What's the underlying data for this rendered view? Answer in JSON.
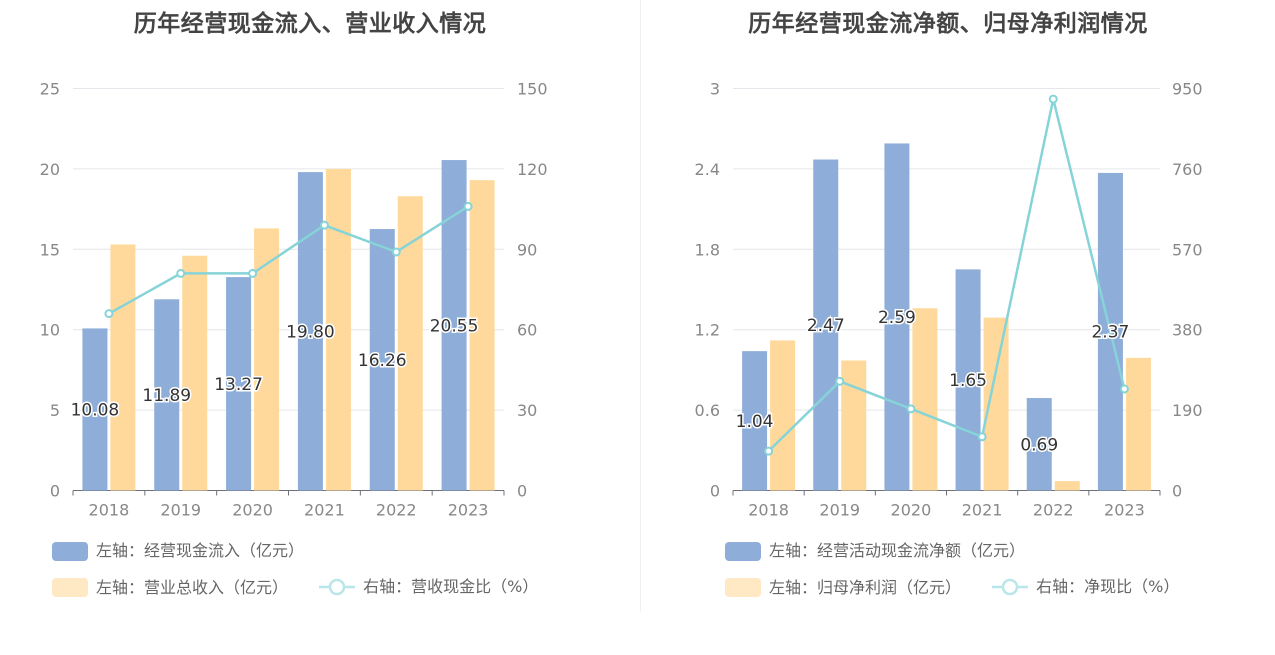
{
  "colors": {
    "bar_primary": "#8eadd9",
    "bar_secondary": "#fed99b",
    "line": "#86d3d8",
    "axis_text": "#888888",
    "grid": "#e3e6ea",
    "title": "#444444"
  },
  "chart_data": [
    {
      "type": "bar",
      "title": "历年经营现金流入、营业收入情况",
      "categories": [
        "2018",
        "2019",
        "2020",
        "2021",
        "2022",
        "2023"
      ],
      "left_axis": {
        "ylim": [
          0,
          25
        ],
        "ticks": [
          "0",
          "5",
          "10",
          "15",
          "20",
          "25"
        ]
      },
      "right_axis": {
        "ylim": [
          0,
          150
        ],
        "ticks": [
          "0",
          "30",
          "60",
          "90",
          "120",
          "150"
        ]
      },
      "grid": true,
      "legend_position": "bottom",
      "series": [
        {
          "name": "左轴：经营现金流入（亿元）",
          "type": "bar",
          "axis": "left",
          "values": [
            10.08,
            11.89,
            13.27,
            19.8,
            16.26,
            20.55
          ],
          "labels": [
            "10.08",
            "11.89",
            "13.27",
            "19.80",
            "16.26",
            "20.55"
          ]
        },
        {
          "name": "左轴：营业总收入（亿元）",
          "type": "bar",
          "axis": "left",
          "values": [
            15.3,
            14.6,
            16.3,
            20.0,
            18.3,
            19.3
          ]
        },
        {
          "name": "右轴：营收现金比（%）",
          "type": "line",
          "axis": "right",
          "values": [
            66,
            81,
            81,
            99,
            89,
            106
          ]
        }
      ]
    },
    {
      "type": "bar",
      "title": "历年经营现金流净额、归母净利润情况",
      "categories": [
        "2018",
        "2019",
        "2020",
        "2021",
        "2022",
        "2023"
      ],
      "left_axis": {
        "ylim": [
          0,
          3
        ],
        "ticks": [
          "0",
          "0.6",
          "1.2",
          "1.8",
          "2.4",
          "3"
        ]
      },
      "right_axis": {
        "ylim": [
          0,
          950
        ],
        "ticks": [
          "0",
          "190",
          "380",
          "570",
          "760",
          "950"
        ]
      },
      "grid": true,
      "legend_position": "bottom",
      "series": [
        {
          "name": "左轴：经营活动现金流净额（亿元）",
          "type": "bar",
          "axis": "left",
          "values": [
            1.04,
            2.47,
            2.59,
            1.65,
            0.69,
            2.37
          ],
          "labels": [
            "1.04",
            "2.47",
            "2.59",
            "1.65",
            "0.69",
            "2.37"
          ]
        },
        {
          "name": "左轴：归母净利润（亿元）",
          "type": "bar",
          "axis": "left",
          "values": [
            1.12,
            0.97,
            1.36,
            1.29,
            0.07,
            0.99
          ]
        },
        {
          "name": "右轴：净现比（%）",
          "type": "line",
          "axis": "right",
          "values": [
            93,
            258,
            193,
            127,
            925,
            240
          ]
        }
      ]
    }
  ]
}
